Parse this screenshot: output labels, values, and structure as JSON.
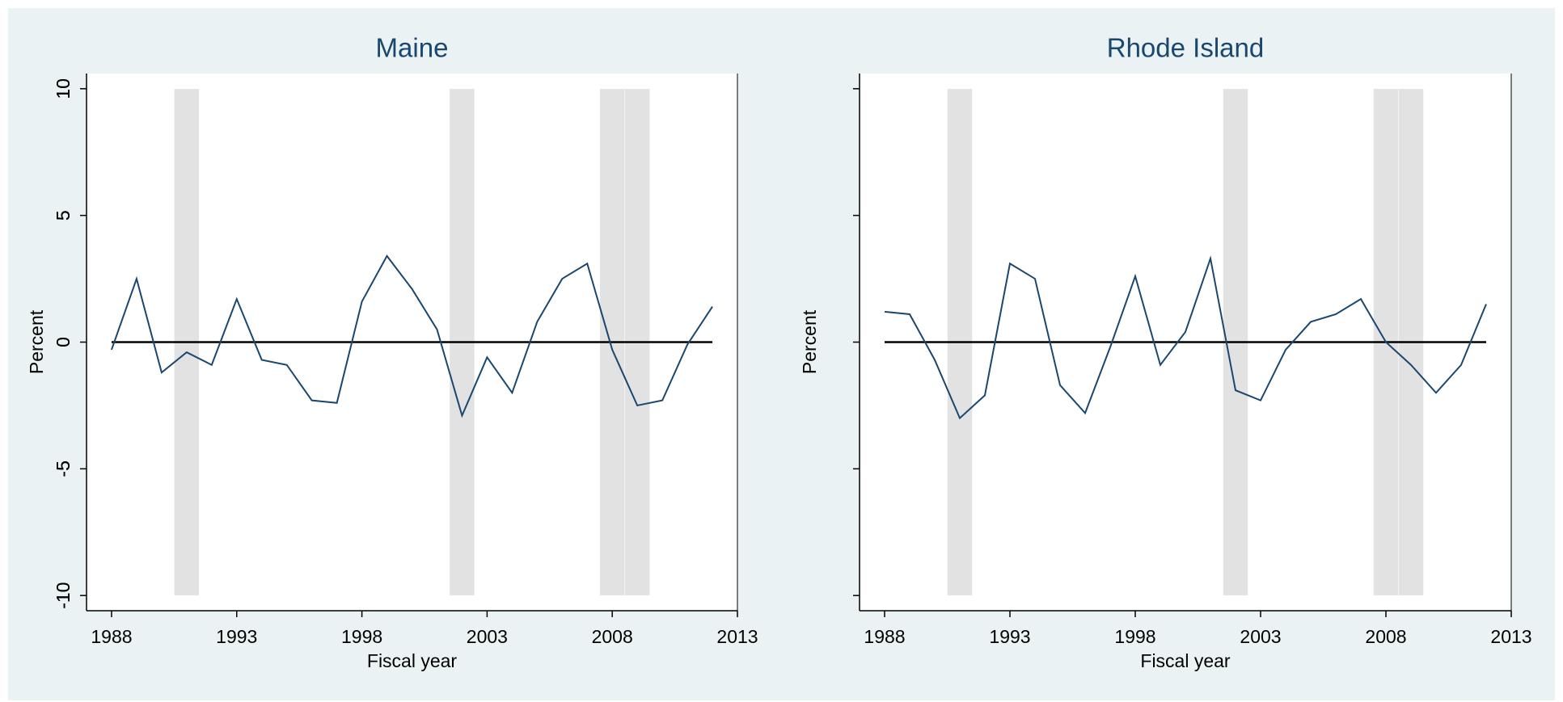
{
  "chart_data": [
    {
      "type": "line",
      "title": "Maine",
      "x_label": "Fiscal year",
      "y_label": "Percent",
      "x": [
        1988,
        1989,
        1990,
        1991,
        1992,
        1993,
        1994,
        1995,
        1996,
        1997,
        1998,
        1999,
        2000,
        2001,
        2002,
        2003,
        2004,
        2005,
        2006,
        2007,
        2008,
        2009,
        2010,
        2011,
        2012
      ],
      "values": [
        -0.3,
        2.5,
        -1.2,
        -0.4,
        -0.9,
        1.7,
        -0.7,
        -0.9,
        -2.3,
        -2.4,
        1.6,
        3.4,
        2.1,
        0.5,
        -2.9,
        -0.6,
        -2.0,
        0.8,
        2.5,
        3.1,
        -0.3,
        -2.5,
        -2.3,
        -0.1,
        1.4
      ],
      "color": "#1a476f",
      "xlim": [
        1987,
        2013
      ],
      "xticks": [
        1988,
        1993,
        1998,
        2003,
        2008,
        2013
      ],
      "ylim": [
        -10.6,
        10.6
      ],
      "yticks": [
        -10,
        -5,
        0,
        5,
        10
      ],
      "reference_line": 0,
      "bands": [
        [
          1990.5,
          1991.5
        ],
        [
          2001.5,
          2002.5
        ],
        [
          2007.5,
          2008.5
        ],
        [
          2008.5,
          2009.5
        ]
      ],
      "band_ylim": [
        -10,
        10
      ],
      "band_color": "#e2e2e2"
    },
    {
      "type": "line",
      "title": "Rhode Island",
      "x_label": "Fiscal year",
      "y_label": "Percent",
      "x": [
        1988,
        1989,
        1990,
        1991,
        1992,
        1993,
        1994,
        1995,
        1996,
        1997,
        1998,
        1999,
        2000,
        2001,
        2002,
        2003,
        2004,
        2005,
        2006,
        2007,
        2008,
        2009,
        2010,
        2011,
        2012
      ],
      "values": [
        1.2,
        1.1,
        -0.7,
        -3.0,
        -2.1,
        3.1,
        2.5,
        -1.7,
        -2.8,
        -0.2,
        2.6,
        -0.9,
        0.4,
        3.3,
        -1.9,
        -2.3,
        -0.3,
        0.8,
        1.1,
        1.7,
        0.0,
        -0.9,
        -2.0,
        -0.9,
        1.5
      ],
      "color": "#1a476f",
      "xlim": [
        1987,
        2013
      ],
      "xticks": [
        1988,
        1993,
        1998,
        2003,
        2008,
        2013
      ],
      "ylim": [
        -10.6,
        10.6
      ],
      "yticks": [
        -10,
        -5,
        0,
        5,
        10
      ],
      "reference_line": 0,
      "bands": [
        [
          1990.5,
          1991.5
        ],
        [
          2001.5,
          2002.5
        ],
        [
          2007.5,
          2008.5
        ],
        [
          2008.5,
          2009.5
        ]
      ],
      "band_ylim": [
        -10,
        10
      ],
      "band_color": "#e2e2e2"
    }
  ]
}
